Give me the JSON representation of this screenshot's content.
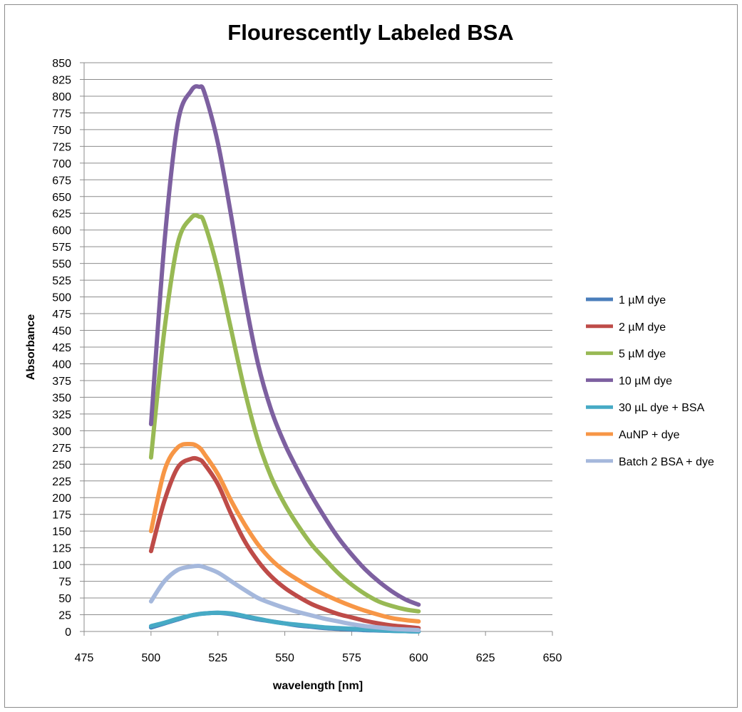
{
  "chart_data": {
    "type": "line",
    "title": "Flourescently Labeled BSA",
    "xlabel": "wavelength [nm]",
    "ylabel": "Absorbance",
    "xlim": [
      475,
      650
    ],
    "ylim": [
      0,
      850
    ],
    "xticks": [
      475,
      500,
      525,
      550,
      575,
      600,
      625,
      650
    ],
    "yticks": [
      0,
      25,
      50,
      75,
      100,
      125,
      150,
      175,
      200,
      225,
      250,
      275,
      300,
      325,
      350,
      375,
      400,
      425,
      450,
      475,
      500,
      525,
      550,
      575,
      600,
      625,
      650,
      675,
      700,
      725,
      750,
      775,
      800,
      825,
      850
    ],
    "grid": "horizontal",
    "legend_position": "right",
    "x": [
      500,
      505,
      510,
      515,
      518,
      520,
      525,
      530,
      535,
      540,
      545,
      550,
      555,
      560,
      565,
      570,
      575,
      580,
      585,
      590,
      595,
      600
    ],
    "series": [
      {
        "name": "1 µM dye",
        "color": "#4a7ebb",
        "values": [
          6,
          12,
          18,
          24,
          26,
          27,
          28,
          26,
          22,
          18,
          15,
          12,
          9,
          7,
          5,
          4,
          3,
          2,
          1.5,
          1,
          0.5,
          0
        ]
      },
      {
        "name": "2 µM dye",
        "color": "#be4b48",
        "values": [
          120,
          195,
          245,
          258,
          257,
          250,
          220,
          175,
          135,
          105,
          82,
          65,
          52,
          41,
          33,
          26,
          21,
          16,
          12,
          9,
          7,
          5
        ]
      },
      {
        "name": "5 µM dye",
        "color": "#98b954",
        "values": [
          260,
          450,
          580,
          618,
          620,
          610,
          540,
          450,
          360,
          285,
          230,
          190,
          158,
          130,
          108,
          87,
          70,
          56,
          45,
          38,
          33,
          30
        ]
      },
      {
        "name": "10 µM dye",
        "color": "#7d60a0",
        "values": [
          310,
          580,
          760,
          808,
          814,
          805,
          730,
          620,
          500,
          400,
          330,
          280,
          240,
          203,
          170,
          140,
          115,
          93,
          75,
          60,
          48,
          40
        ]
      },
      {
        "name": "30 µL dye + BSA",
        "color": "#46aac5",
        "values": [
          8,
          13,
          19,
          24,
          26,
          27,
          28,
          27,
          23,
          19,
          15,
          12,
          10,
          8,
          6,
          5,
          4,
          3,
          2,
          1,
          0.5,
          0
        ]
      },
      {
        "name": "AuNP + dye",
        "color": "#f79646",
        "values": [
          150,
          240,
          275,
          280,
          275,
          265,
          235,
          195,
          160,
          130,
          107,
          90,
          77,
          65,
          55,
          46,
          38,
          31,
          25,
          20,
          17,
          15
        ]
      },
      {
        "name": "Batch 2 BSA + dye",
        "color": "#a5b8dc",
        "values": [
          45,
          75,
          92,
          97,
          98,
          96,
          88,
          75,
          62,
          50,
          42,
          35,
          29,
          24,
          19,
          15,
          11,
          8,
          6,
          4,
          3,
          2
        ]
      }
    ]
  }
}
